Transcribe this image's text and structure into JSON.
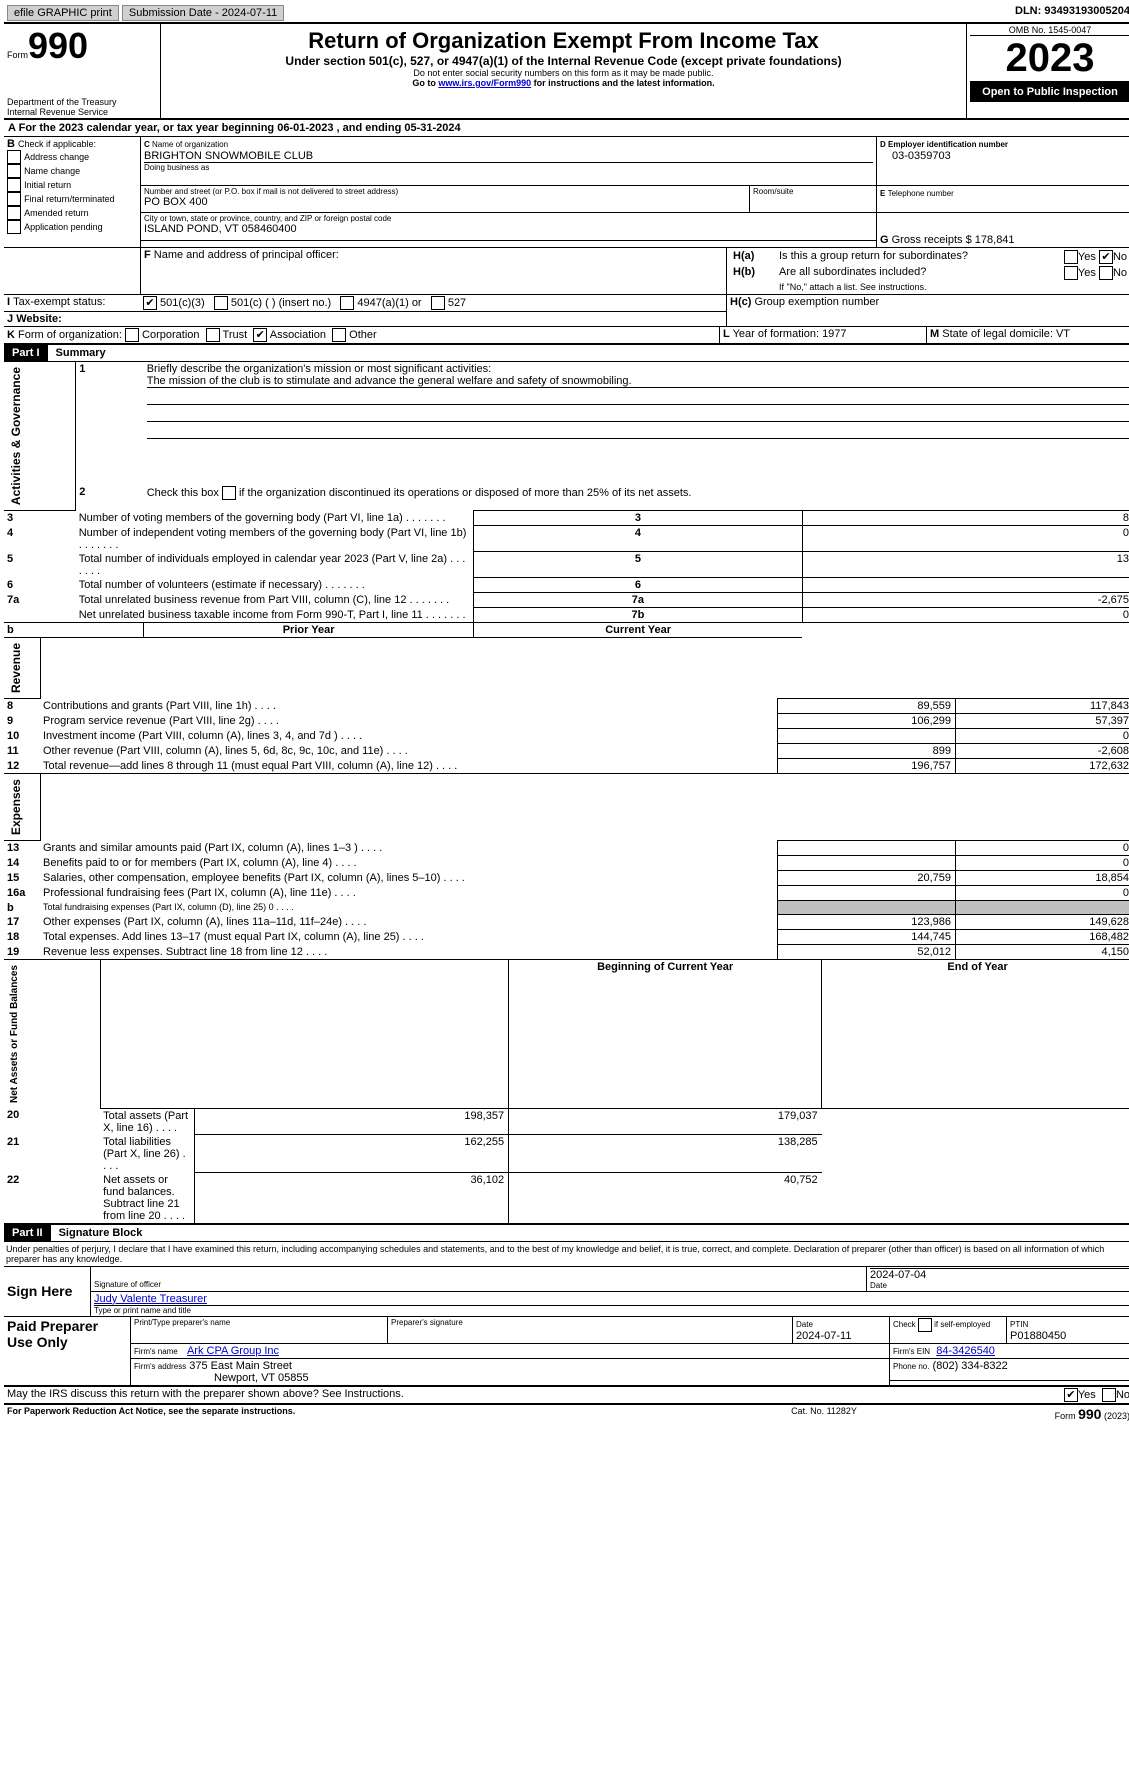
{
  "topbar": {
    "efile": "efile GRAPHIC print",
    "submission": "Submission Date - 2024-07-11",
    "dln": "DLN: 93493193005204"
  },
  "header": {
    "form_word": "Form",
    "form_no": "990",
    "dept": "Department of the Treasury",
    "irs": "Internal Revenue Service",
    "title": "Return of Organization Exempt From Income Tax",
    "subtitle": "Under section 501(c), 527, or 4947(a)(1) of the Internal Revenue Code (except private foundations)",
    "ssn_note": "Do not enter social security numbers on this form as it may be made public.",
    "goto_prefix": "Go to ",
    "goto_link": "www.irs.gov/Form990",
    "goto_suffix": " for instructions and the latest information.",
    "omb": "OMB No. 1545-0047",
    "year": "2023",
    "open": "Open to Public Inspection"
  },
  "A": {
    "line": "For the 2023 calendar year, or tax year beginning 06-01-2023   , and ending 05-31-2024"
  },
  "B": {
    "title": "Check if applicable:",
    "opts": [
      "Address change",
      "Name change",
      "Initial return",
      "Final return/terminated",
      "Amended return",
      "Application pending"
    ]
  },
  "C": {
    "name_lbl": "Name of organization",
    "name": "BRIGHTON SNOWMOBILE CLUB",
    "dba_lbl": "Doing business as",
    "street_lbl": "Number and street (or P.O. box if mail is not delivered to street address)",
    "room_lbl": "Room/suite",
    "street": "PO BOX 400",
    "city_lbl": "City or town, state or province, country, and ZIP or foreign postal code",
    "city": "ISLAND POND, VT  058460400"
  },
  "D": {
    "lbl": "Employer identification number",
    "val": "03-0359703"
  },
  "E": {
    "lbl": "Telephone number"
  },
  "G": {
    "lbl": "Gross receipts $",
    "val": "178,841"
  },
  "F": {
    "lbl": "Name and address of principal officer:"
  },
  "H": {
    "a": "Is this a group return for subordinates?",
    "b": "Are all subordinates included?",
    "b_note": "If \"No,\" attach a list. See instructions.",
    "c": "Group exemption number",
    "yes": "Yes",
    "no": "No",
    "a_ans": "No"
  },
  "I": {
    "lbl": "Tax-exempt status:",
    "opts": [
      "501(c)(3)",
      "501(c) (  ) (insert no.)",
      "4947(a)(1) or",
      "527"
    ],
    "checked": 0
  },
  "J": {
    "lbl": "Website:"
  },
  "K": {
    "lbl": "Form of organization:",
    "opts": [
      "Corporation",
      "Trust",
      "Association",
      "Other"
    ],
    "checked": 2
  },
  "L": {
    "lbl": "Year of formation:",
    "val": "1977"
  },
  "M": {
    "lbl": "State of legal domicile:",
    "val": "VT"
  },
  "part1": {
    "hdr": "Part I",
    "title": "Summary",
    "l1_lbl": "Briefly describe the organization's mission or most significant activities:",
    "l1_val": "The mission of the club is to stimulate and advance the general welfare and safety of snowmobiling.",
    "l2": "Check this box      if the organization discontinued its operations or disposed of more than 25% of its net assets.",
    "rows_gov": [
      {
        "n": "3",
        "t": "Number of voting members of the governing body (Part VI, line 1a)",
        "k": "3",
        "v": "8"
      },
      {
        "n": "4",
        "t": "Number of independent voting members of the governing body (Part VI, line 1b)",
        "k": "4",
        "v": "0"
      },
      {
        "n": "5",
        "t": "Total number of individuals employed in calendar year 2023 (Part V, line 2a)",
        "k": "5",
        "v": "13"
      },
      {
        "n": "6",
        "t": "Total number of volunteers (estimate if necessary)",
        "k": "6",
        "v": ""
      },
      {
        "n": "7a",
        "t": "Total unrelated business revenue from Part VIII, column (C), line 12",
        "k": "7a",
        "v": "-2,675"
      },
      {
        "n": "",
        "t": "Net unrelated business taxable income from Form 990-T, Part I, line 11",
        "k": "7b",
        "v": "0"
      }
    ],
    "col_prior": "Prior Year",
    "col_curr": "Current Year",
    "rows_rev": [
      {
        "n": "8",
        "t": "Contributions and grants (Part VIII, line 1h)",
        "p": "89,559",
        "c": "117,843"
      },
      {
        "n": "9",
        "t": "Program service revenue (Part VIII, line 2g)",
        "p": "106,299",
        "c": "57,397"
      },
      {
        "n": "10",
        "t": "Investment income (Part VIII, column (A), lines 3, 4, and 7d )",
        "p": "",
        "c": "0"
      },
      {
        "n": "11",
        "t": "Other revenue (Part VIII, column (A), lines 5, 6d, 8c, 9c, 10c, and 11e)",
        "p": "899",
        "c": "-2,608"
      },
      {
        "n": "12",
        "t": "Total revenue—add lines 8 through 11 (must equal Part VIII, column (A), line 12)",
        "p": "196,757",
        "c": "172,632"
      }
    ],
    "rows_exp": [
      {
        "n": "13",
        "t": "Grants and similar amounts paid (Part IX, column (A), lines 1–3 )",
        "p": "",
        "c": "0"
      },
      {
        "n": "14",
        "t": "Benefits paid to or for members (Part IX, column (A), line 4)",
        "p": "",
        "c": "0"
      },
      {
        "n": "15",
        "t": "Salaries, other compensation, employee benefits (Part IX, column (A), lines 5–10)",
        "p": "20,759",
        "c": "18,854"
      },
      {
        "n": "16a",
        "t": "Professional fundraising fees (Part IX, column (A), line 11e)",
        "p": "",
        "c": "0"
      },
      {
        "n": "b",
        "t": "Total fundraising expenses (Part IX, column (D), line 25) 0",
        "p": "GREY",
        "c": "GREY",
        "small": true
      },
      {
        "n": "17",
        "t": "Other expenses (Part IX, column (A), lines 11a–11d, 11f–24e)",
        "p": "123,986",
        "c": "149,628"
      },
      {
        "n": "18",
        "t": "Total expenses. Add lines 13–17 (must equal Part IX, column (A), line 25)",
        "p": "144,745",
        "c": "168,482"
      },
      {
        "n": "19",
        "t": "Revenue less expenses. Subtract line 18 from line 12",
        "p": "52,012",
        "c": "4,150"
      }
    ],
    "col_begin": "Beginning of Current Year",
    "col_end": "End of Year",
    "rows_net": [
      {
        "n": "20",
        "t": "Total assets (Part X, line 16)",
        "p": "198,357",
        "c": "179,037"
      },
      {
        "n": "21",
        "t": "Total liabilities (Part X, line 26)",
        "p": "162,255",
        "c": "138,285"
      },
      {
        "n": "22",
        "t": "Net assets or fund balances. Subtract line 21 from line 20",
        "p": "36,102",
        "c": "40,752"
      }
    ],
    "side_gov": "Activities & Governance",
    "side_rev": "Revenue",
    "side_exp": "Expenses",
    "side_net": "Net Assets or Fund Balances"
  },
  "part2": {
    "hdr": "Part II",
    "title": "Signature Block",
    "perjury": "Under penalties of perjury, I declare that I have examined this return, including accompanying schedules and statements, and to the best of my knowledge and belief, it is true, correct, and complete. Declaration of preparer (other than officer) is based on all information of which preparer has any knowledge.",
    "sign_here": "Sign Here",
    "sig_officer": "Signature of officer",
    "sig_date": "Date",
    "sig_date_val": "2024-07-04",
    "officer": "Judy Valente Treasurer",
    "type_name": "Type or print name and title",
    "paid": "Paid Preparer Use Only",
    "prep_name_lbl": "Print/Type preparer's name",
    "prep_sig_lbl": "Preparer's signature",
    "prep_date_lbl": "Date",
    "prep_date": "2024-07-11",
    "self_emp": "Check       if self-employed",
    "ptin_lbl": "PTIN",
    "ptin": "P01880450",
    "firm_name_lbl": "Firm's name",
    "firm_name": "Ark CPA Group Inc",
    "firm_ein_lbl": "Firm's EIN",
    "firm_ein": "84-3426540",
    "firm_addr_lbl": "Firm's address",
    "firm_addr1": "375 East Main Street",
    "firm_addr2": "Newport, VT  05855",
    "firm_phone_lbl": "Phone no.",
    "firm_phone": "(802) 334-8322",
    "discuss": "May the IRS discuss this return with the preparer shown above? See Instructions.",
    "discuss_ans": "Yes"
  },
  "footer": {
    "pra": "For Paperwork Reduction Act Notice, see the separate instructions.",
    "cat": "Cat. No. 11282Y",
    "form": "Form 990 (2023)"
  }
}
